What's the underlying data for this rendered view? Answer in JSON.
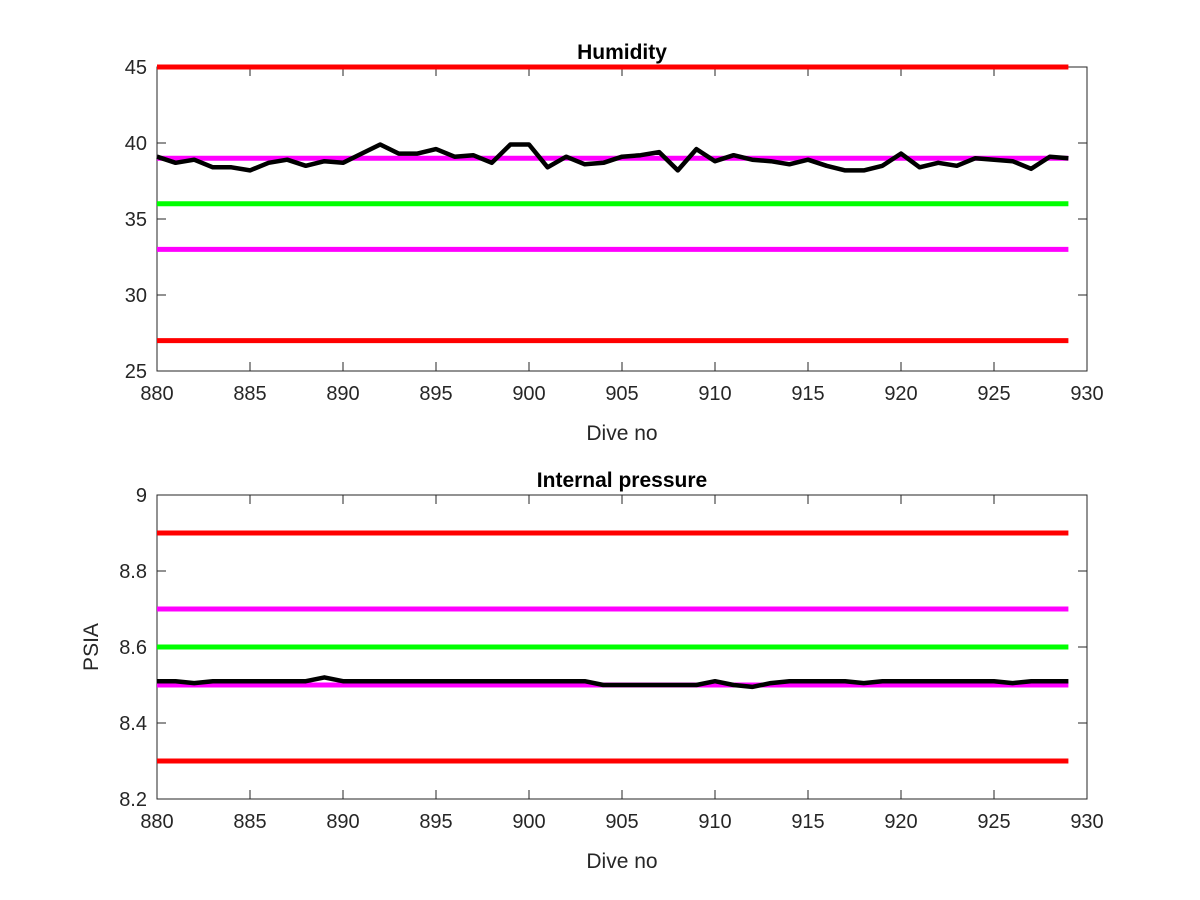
{
  "chart_data": [
    {
      "type": "line",
      "title": "Humidity",
      "xlabel": "Dive no",
      "ylabel": "",
      "xlim": [
        880,
        930
      ],
      "ylim": [
        25,
        45
      ],
      "xticks": [
        880,
        885,
        890,
        895,
        900,
        905,
        910,
        915,
        920,
        925,
        930
      ],
      "yticks": [
        25,
        30,
        35,
        40,
        45
      ],
      "grid": false,
      "series": [
        {
          "color": "#000000",
          "x": [
            880,
            881,
            882,
            883,
            884,
            885,
            886,
            887,
            888,
            889,
            890,
            891,
            892,
            893,
            894,
            895,
            896,
            897,
            898,
            899,
            900,
            901,
            902,
            903,
            904,
            905,
            906,
            907,
            908,
            909,
            910,
            911,
            912,
            913,
            914,
            915,
            916,
            917,
            918,
            919,
            920,
            921,
            922,
            923,
            924,
            925,
            926,
            927,
            928,
            929
          ],
          "y": [
            39.1,
            38.7,
            38.9,
            38.4,
            38.4,
            38.2,
            38.7,
            38.9,
            38.5,
            38.8,
            38.7,
            39.3,
            39.9,
            39.3,
            39.3,
            39.6,
            39.1,
            39.2,
            38.7,
            39.9,
            39.9,
            38.4,
            39.1,
            38.6,
            38.7,
            39.1,
            39.2,
            39.4,
            38.2,
            39.6,
            38.8,
            39.2,
            38.9,
            38.8,
            38.6,
            38.9,
            38.5,
            38.2,
            38.2,
            38.5,
            39.3,
            38.4,
            38.7,
            38.5,
            39.0,
            38.9,
            38.8,
            38.3,
            39.1,
            39.0
          ]
        },
        {
          "color": "#ff0000",
          "x": [
            880,
            929
          ],
          "y": [
            45,
            45
          ]
        },
        {
          "color": "#ff00ff",
          "x": [
            880,
            929
          ],
          "y": [
            39,
            39
          ]
        },
        {
          "color": "#00ff00",
          "x": [
            880,
            929
          ],
          "y": [
            36,
            36
          ]
        },
        {
          "color": "#ff00ff",
          "x": [
            880,
            929
          ],
          "y": [
            33,
            33
          ]
        },
        {
          "color": "#ff0000",
          "x": [
            880,
            929
          ],
          "y": [
            27,
            27
          ]
        }
      ]
    },
    {
      "type": "line",
      "title": "Internal pressure",
      "xlabel": "Dive no",
      "ylabel": "PSIA",
      "xlim": [
        880,
        930
      ],
      "ylim": [
        8.2,
        9.0
      ],
      "xticks": [
        880,
        885,
        890,
        895,
        900,
        905,
        910,
        915,
        920,
        925,
        930
      ],
      "yticks": [
        8.2,
        8.4,
        8.6,
        8.8,
        9
      ],
      "grid": false,
      "series": [
        {
          "color": "#000000",
          "x": [
            880,
            881,
            882,
            883,
            884,
            885,
            886,
            887,
            888,
            889,
            890,
            891,
            892,
            893,
            894,
            895,
            896,
            897,
            898,
            899,
            900,
            901,
            902,
            903,
            904,
            905,
            906,
            907,
            908,
            909,
            910,
            911,
            912,
            913,
            914,
            915,
            916,
            917,
            918,
            919,
            920,
            921,
            922,
            923,
            924,
            925,
            926,
            927,
            928,
            929
          ],
          "y": [
            8.51,
            8.51,
            8.505,
            8.51,
            8.51,
            8.51,
            8.51,
            8.51,
            8.51,
            8.52,
            8.51,
            8.51,
            8.51,
            8.51,
            8.51,
            8.51,
            8.51,
            8.51,
            8.51,
            8.51,
            8.51,
            8.51,
            8.51,
            8.51,
            8.5,
            8.5,
            8.5,
            8.5,
            8.5,
            8.5,
            8.51,
            8.5,
            8.495,
            8.505,
            8.51,
            8.51,
            8.51,
            8.51,
            8.505,
            8.51,
            8.51,
            8.51,
            8.51,
            8.51,
            8.51,
            8.51,
            8.505,
            8.51,
            8.51,
            8.51
          ]
        },
        {
          "color": "#ff0000",
          "x": [
            880,
            929
          ],
          "y": [
            8.9,
            8.9
          ]
        },
        {
          "color": "#ff00ff",
          "x": [
            880,
            929
          ],
          "y": [
            8.7,
            8.7
          ]
        },
        {
          "color": "#00ff00",
          "x": [
            880,
            929
          ],
          "y": [
            8.6,
            8.6
          ]
        },
        {
          "color": "#ff00ff",
          "x": [
            880,
            929
          ],
          "y": [
            8.5,
            8.5
          ]
        },
        {
          "color": "#ff0000",
          "x": [
            880,
            929
          ],
          "y": [
            8.3,
            8.3
          ]
        }
      ]
    }
  ]
}
